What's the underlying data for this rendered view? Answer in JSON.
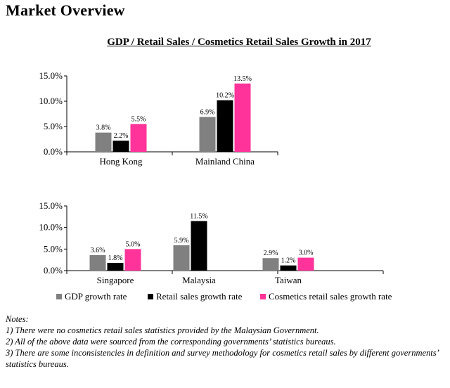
{
  "page_title": "Market Overview",
  "chart_data": [
    {
      "type": "bar",
      "title": "GDP / Retail Sales / Cosmetics Retail Sales Growth in 2017",
      "categories": [
        "Hong Kong",
        "Mainland China"
      ],
      "ylim": [
        0,
        15
      ],
      "yticks": [
        "0.0%",
        "5.0%",
        "10.0%",
        "15.0%"
      ],
      "series": [
        {
          "name": "GDP growth rate",
          "color": "#808080",
          "values": [
            3.8,
            6.9
          ],
          "labels": [
            "3.8%",
            "6.9%"
          ]
        },
        {
          "name": "Retail sales growth rate",
          "color": "#000000",
          "values": [
            2.2,
            10.2
          ],
          "labels": [
            "2.2%",
            "10.2%"
          ]
        },
        {
          "name": "Cosmetics retail sales growth rate",
          "color": "#ff3399",
          "values": [
            5.5,
            13.5
          ],
          "labels": [
            "5.5%",
            "13.5%"
          ]
        }
      ],
      "grid": false
    },
    {
      "type": "bar",
      "categories": [
        "Singapore",
        "Malaysia",
        "Taiwan"
      ],
      "ylim": [
        0,
        15
      ],
      "yticks": [
        "0.0%",
        "5.0%",
        "10.0%",
        "15.0%"
      ],
      "series": [
        {
          "name": "GDP growth rate",
          "color": "#808080",
          "values": [
            3.6,
            5.9,
            2.9
          ],
          "labels": [
            "3.6%",
            "5.9%",
            "2.9%"
          ]
        },
        {
          "name": "Retail sales growth rate",
          "color": "#000000",
          "values": [
            1.8,
            11.5,
            1.2
          ],
          "labels": [
            "1.8%",
            "11.5%",
            "1.2%"
          ]
        },
        {
          "name": "Cosmetics retail sales growth rate",
          "color": "#ff3399",
          "values": [
            5.0,
            null,
            3.0
          ],
          "labels": [
            "5.0%",
            "",
            "3.0%"
          ]
        }
      ],
      "grid": false,
      "legend_position": "bottom"
    }
  ],
  "legend": [
    {
      "label": "GDP growth rate",
      "color": "#808080"
    },
    {
      "label": "Retail sales growth rate",
      "color": "#000000"
    },
    {
      "label": "Cosmetics retail sales growth rate",
      "color": "#ff3399"
    }
  ],
  "notes": {
    "heading": "Notes:",
    "lines": [
      "1) There were no cosmetics retail sales statistics provided by the Malaysian Government.",
      "2) All of the above data were sourced from the corresponding governments’ statistics bureaus.",
      "3) There are some inconsistencies in definition and survey methodology for cosmetics retail sales by different governments’ statistics bureaus."
    ]
  }
}
